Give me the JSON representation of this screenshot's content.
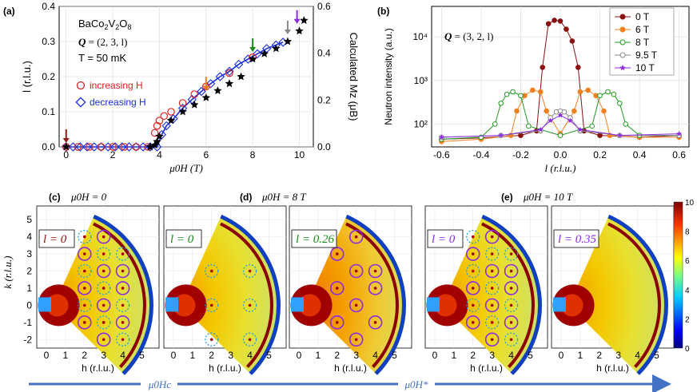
{
  "chart_data": [
    {
      "id": "a",
      "panel_label": "(a)",
      "type": "scatter",
      "material_parts": [
        "BaCo",
        "2",
        "V",
        "2",
        "O",
        "8"
      ],
      "q_label": "Q",
      "q_value": " = (2, 3, l)",
      "t_label": "T = 50 mK",
      "xlabel": "μ0H (T)",
      "ylabel": "l (r.l.u.)",
      "y2label": "Calculated Mz (μB)",
      "xlim": [
        -0.3,
        10.6
      ],
      "ylim": [
        0,
        0.4
      ],
      "y2lim": [
        0,
        0.6
      ],
      "xticks": [
        "0",
        "2",
        "4",
        "6",
        "8",
        "10"
      ],
      "yticks": [
        "0.0",
        "0.1",
        "0.2",
        "0.3",
        "0.4"
      ],
      "y2ticks": [
        "0.0",
        "0.2",
        "0.4",
        "0.6"
      ],
      "legend": [
        "increasing H",
        "decreasing H"
      ],
      "series": [
        {
          "name": "increasing H",
          "marker": "circle",
          "color": "#e02020",
          "x": [
            0,
            0.5,
            1,
            1.5,
            2,
            2.5,
            3,
            3.5,
            3.8,
            3.9,
            4.0,
            4.2,
            4.5,
            5.0,
            5.5,
            6.0,
            7.0,
            8.0
          ],
          "y": [
            0,
            0,
            0,
            0,
            0,
            0,
            0,
            0,
            0.04,
            0.06,
            0.075,
            0.088,
            0.1,
            0.125,
            0.15,
            0.172,
            0.21,
            0.255
          ]
        },
        {
          "name": "decreasing H",
          "marker": "diamond",
          "color": "#1a2fe0",
          "x": [
            0,
            0.3,
            0.6,
            0.9,
            1.2,
            1.5,
            1.8,
            2.1,
            2.4,
            2.7,
            3.0,
            3.3,
            3.6,
            3.9,
            4.1,
            4.3,
            4.6,
            5.0,
            5.4,
            5.8,
            6.2,
            6.6,
            7.0,
            7.4,
            7.8,
            8.2,
            8.6,
            9.0,
            9.3
          ],
          "y": [
            0,
            0,
            0,
            0,
            0,
            0,
            0,
            0,
            0,
            0,
            0,
            0,
            0,
            0.0,
            0.035,
            0.06,
            0.08,
            0.11,
            0.135,
            0.158,
            0.18,
            0.2,
            0.215,
            0.235,
            0.25,
            0.265,
            0.28,
            0.29,
            0.298
          ]
        },
        {
          "name": "calculated Mz",
          "marker": "star",
          "color": "#000000",
          "x": [
            0,
            3.6,
            3.8,
            3.9,
            4.0,
            4.5,
            5.0,
            5.5,
            6.0,
            6.5,
            7.0,
            7.5,
            8.0,
            8.5,
            9.0,
            9.5,
            10.0,
            10.2
          ],
          "y": [
            0,
            0,
            0.005,
            0.015,
            0.03,
            0.075,
            0.1,
            0.12,
            0.14,
            0.16,
            0.18,
            0.2,
            0.25,
            0.265,
            0.28,
            0.3,
            0.33,
            0.36
          ]
        }
      ],
      "arrows": [
        {
          "x": 0,
          "color": "#8b1a1a"
        },
        {
          "x": 6,
          "color": "#f07a10"
        },
        {
          "x": 8,
          "color": "#1a8a1a"
        },
        {
          "x": 9.5,
          "color": "#888888"
        },
        {
          "x": 9.9,
          "color": "#8a2be2"
        }
      ]
    },
    {
      "id": "b",
      "panel_label": "(b)",
      "type": "line",
      "q_label": "Q",
      "q_value": " = (3, 2, l)",
      "xlabel": "l (r.l.u.)",
      "ylabel": "Neutron intensity (a.u.)",
      "yscale": "log",
      "xlim": [
        -0.65,
        0.65
      ],
      "ylim": [
        30,
        50000
      ],
      "xticks": [
        "-0.6",
        "-0.4",
        "-0.2",
        "0.0",
        "0.2",
        "0.4",
        "0.6"
      ],
      "yticks": [
        "10²",
        "10³",
        "10⁴"
      ],
      "series": [
        {
          "name": "0 T",
          "color": "#8b1010",
          "marker": "filled-circle",
          "x": [
            -0.6,
            -0.4,
            -0.2,
            -0.12,
            -0.09,
            -0.06,
            -0.03,
            0,
            0.03,
            0.06,
            0.09,
            0.12,
            0.2,
            0.4,
            0.6
          ],
          "y": [
            45,
            48,
            55,
            70,
            2000,
            20000,
            24000,
            23000,
            15000,
            8000,
            2000,
            70,
            55,
            50,
            55
          ]
        },
        {
          "name": "6 T",
          "color": "#f08020",
          "marker": "filled-circle",
          "x": [
            -0.6,
            -0.4,
            -0.25,
            -0.22,
            -0.18,
            -0.14,
            -0.1,
            -0.07,
            0,
            0.07,
            0.1,
            0.14,
            0.18,
            0.22,
            0.25,
            0.4,
            0.6
          ],
          "y": [
            40,
            45,
            55,
            200,
            450,
            600,
            550,
            200,
            60,
            200,
            550,
            600,
            450,
            200,
            55,
            50,
            50
          ]
        },
        {
          "name": "8 T",
          "color": "#229922",
          "marker": "open-circle",
          "x": [
            -0.6,
            -0.4,
            -0.33,
            -0.3,
            -0.27,
            -0.24,
            -0.2,
            -0.16,
            0,
            0.16,
            0.2,
            0.24,
            0.27,
            0.3,
            0.33,
            0.4,
            0.6
          ],
          "y": [
            45,
            50,
            100,
            300,
            480,
            550,
            450,
            90,
            55,
            90,
            450,
            550,
            480,
            300,
            100,
            55,
            55
          ]
        },
        {
          "name": "9.5 T",
          "color": "#888888",
          "marker": "open-circle",
          "x": [
            -0.6,
            -0.3,
            -0.1,
            -0.05,
            -0.02,
            0,
            0.02,
            0.05,
            0.1,
            0.3,
            0.6
          ],
          "y": [
            50,
            55,
            70,
            140,
            190,
            200,
            190,
            140,
            70,
            55,
            55
          ]
        },
        {
          "name": "10 T",
          "color": "#8a2be2",
          "marker": "star",
          "x": [
            -0.6,
            -0.3,
            -0.1,
            -0.05,
            0,
            0.05,
            0.1,
            0.3,
            0.6
          ],
          "y": [
            50,
            55,
            75,
            120,
            160,
            120,
            75,
            55,
            60
          ]
        }
      ]
    },
    {
      "id": "maps",
      "type": "heatmap",
      "xlabel": "h (r.l.u.)",
      "ylabel": "k (r.l.u.)",
      "xticks": [
        "0",
        "1",
        "2",
        "3",
        "4",
        "5"
      ],
      "yticks": [
        "5",
        "4",
        "3",
        "2",
        "1",
        "0",
        "-1",
        "-2"
      ],
      "colorbar_ticks": [
        "10",
        "8",
        "6",
        "4",
        "2",
        "0"
      ],
      "colorbar_range": [
        0,
        10
      ],
      "panels": [
        {
          "id": "c",
          "panel_label": "(c)",
          "field_label": "μ0H = 0",
          "l_label": "l = 0",
          "label_color": "#8b1010",
          "peaks": [
            {
              "h": 2,
              "k": 4,
              "style": "dotted"
            },
            {
              "h": 3,
              "k": 4,
              "style": "solid"
            },
            {
              "h": 2,
              "k": 3,
              "style": "solid"
            },
            {
              "h": 3,
              "k": 3,
              "style": "dotted"
            },
            {
              "h": 4,
              "k": 3,
              "style": "dotted"
            },
            {
              "h": 2,
              "k": 2,
              "style": "dotted"
            },
            {
              "h": 3,
              "k": 2,
              "style": "solid"
            },
            {
              "h": 4,
              "k": 2,
              "style": "solid"
            },
            {
              "h": 2,
              "k": 1,
              "style": "solid"
            },
            {
              "h": 3,
              "k": 1,
              "style": "dotted"
            },
            {
              "h": 4,
              "k": 1,
              "style": "solid"
            },
            {
              "h": 2,
              "k": 0,
              "style": "dotted"
            },
            {
              "h": 3,
              "k": 0,
              "style": "solid"
            },
            {
              "h": 4,
              "k": 0,
              "style": "dotted"
            },
            {
              "h": 2,
              "k": -1,
              "style": "solid"
            },
            {
              "h": 3,
              "k": -1,
              "style": "dotted"
            },
            {
              "h": 4,
              "k": -1,
              "style": "solid"
            },
            {
              "h": 3,
              "k": -2,
              "style": "solid"
            },
            {
              "h": 4,
              "k": -2,
              "style": "dotted"
            }
          ]
        },
        {
          "id": "d",
          "panel_label": "(d)",
          "field_label": "μ0H = 8 T",
          "l_label": "l = 0",
          "label_color": "#1a8a1a",
          "peaks": [
            {
              "h": 2,
              "k": 2,
              "style": "dotted"
            },
            {
              "h": 4,
              "k": 2,
              "style": "dotted"
            },
            {
              "h": 2,
              "k": 0,
              "style": "dotted"
            },
            {
              "h": 4,
              "k": 0,
              "style": "dotted"
            },
            {
              "h": 2,
              "k": -2,
              "style": "dotted"
            },
            {
              "h": 4,
              "k": -2,
              "style": "dotted"
            }
          ]
        },
        {
          "id": "d2",
          "panel_label": "",
          "field_label": "",
          "l_label": "l = 0.26",
          "label_color": "#1a8a1a",
          "peaks": [
            {
              "h": 3,
              "k": 4,
              "style": "solid"
            },
            {
              "h": 2,
              "k": 3,
              "style": "solid"
            },
            {
              "h": 3,
              "k": 2,
              "style": "solid"
            },
            {
              "h": 4,
              "k": 2,
              "style": "solid"
            },
            {
              "h": 2,
              "k": 1,
              "style": "solid"
            },
            {
              "h": 4,
              "k": 1,
              "style": "solid"
            },
            {
              "h": 3,
              "k": 0,
              "style": "solid"
            },
            {
              "h": 2,
              "k": -1,
              "style": "solid"
            },
            {
              "h": 4,
              "k": -1,
              "style": "solid"
            },
            {
              "h": 3,
              "k": -2,
              "style": "solid"
            }
          ]
        },
        {
          "id": "e",
          "panel_label": "(e)",
          "field_label": "μ0H = 10 T",
          "l_label": "l = 0",
          "label_color": "#8a2be2",
          "peaks": [
            {
              "h": 2,
              "k": 4,
              "style": "dotted"
            },
            {
              "h": 3,
              "k": 4,
              "style": "solid"
            },
            {
              "h": 2,
              "k": 3,
              "style": "solid"
            },
            {
              "h": 3,
              "k": 3,
              "style": "dotted"
            },
            {
              "h": 4,
              "k": 3,
              "style": "dotted"
            },
            {
              "h": 2,
              "k": 2,
              "style": "dotted"
            },
            {
              "h": 3,
              "k": 2,
              "style": "solid"
            },
            {
              "h": 4,
              "k": 2,
              "style": "solid"
            },
            {
              "h": 2,
              "k": 1,
              "style": "solid"
            },
            {
              "h": 3,
              "k": 1,
              "style": "dotted"
            },
            {
              "h": 4,
              "k": 1,
              "style": "solid"
            },
            {
              "h": 2,
              "k": 0,
              "style": "dotted"
            },
            {
              "h": 3,
              "k": 0,
              "style": "solid"
            },
            {
              "h": 4,
              "k": 0,
              "style": "dotted"
            },
            {
              "h": 2,
              "k": -1,
              "style": "solid"
            },
            {
              "h": 3,
              "k": -1,
              "style": "dotted"
            },
            {
              "h": 4,
              "k": -1,
              "style": "solid"
            },
            {
              "h": 3,
              "k": -2,
              "style": "solid"
            },
            {
              "h": 4,
              "k": -2,
              "style": "dotted"
            }
          ]
        },
        {
          "id": "e2",
          "panel_label": "",
          "field_label": "",
          "l_label": "l = 0.35",
          "label_color": "#8a2be2",
          "peaks": []
        }
      ]
    }
  ],
  "bottom_arrow": {
    "label_1": "μ0Hc",
    "label_2": "μ0H*",
    "color": "#4472c4"
  },
  "colors": {
    "increasing": "#e02020",
    "decreasing": "#1a2fe0",
    "accent": "#4472c4"
  }
}
